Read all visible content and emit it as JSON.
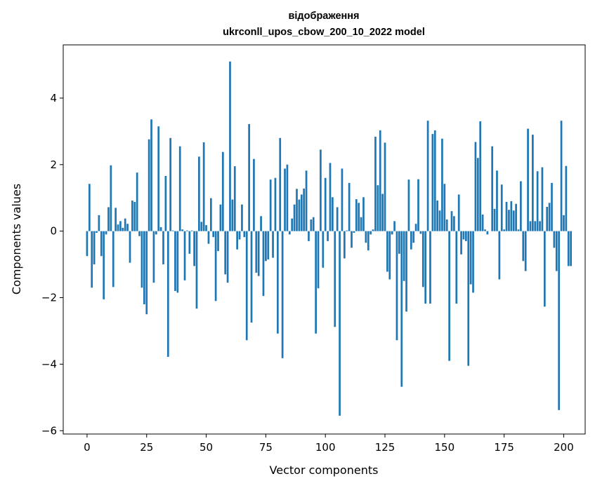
{
  "chart_data": {
    "type": "bar",
    "title_line1": "відображення",
    "title_line2": "ukrconll_upos_cbow_200_10_2022 model",
    "xlabel": "Vector components",
    "ylabel": "Components values",
    "xlim": [
      -10,
      209
    ],
    "ylim": [
      -6.1,
      5.6
    ],
    "xticks": [
      0,
      25,
      50,
      75,
      100,
      125,
      150,
      175,
      200
    ],
    "yticks": [
      -6,
      -4,
      -2,
      0,
      2,
      4
    ],
    "ytick_labels": [
      "−6",
      "−4",
      "−2",
      "0",
      "2",
      "4"
    ],
    "bar_color": "#1f77b4",
    "grid": false,
    "values": [
      -0.75,
      1.42,
      -1.7,
      -1.0,
      -0.05,
      0.48,
      -0.75,
      -2.05,
      -0.1,
      0.72,
      1.98,
      -1.68,
      0.7,
      0.2,
      0.3,
      0.1,
      0.38,
      0.22,
      -0.95,
      0.92,
      0.88,
      1.76,
      -0.15,
      -1.7,
      -2.2,
      -2.5,
      2.76,
      3.36,
      -1.55,
      -0.1,
      3.15,
      0.12,
      -1.0,
      1.66,
      -3.78,
      2.8,
      0.02,
      -1.8,
      -1.85,
      2.55,
      0.05,
      -1.48,
      0.02,
      -0.68,
      0.02,
      -1.05,
      -2.33,
      2.24,
      0.28,
      2.67,
      0.18,
      -0.38,
      0.99,
      -0.18,
      -2.1,
      -0.6,
      0.8,
      2.38,
      -1.3,
      -1.55,
      5.1,
      0.95,
      1.95,
      -0.55,
      -0.25,
      0.8,
      -0.18,
      -3.28,
      3.22,
      -2.75,
      2.17,
      -1.25,
      -1.35,
      0.45,
      -1.95,
      -0.9,
      -0.85,
      1.55,
      -0.8,
      1.6,
      -3.08,
      2.8,
      -3.82,
      1.88,
      2.0,
      -0.1,
      0.38,
      0.8,
      1.27,
      0.95,
      1.1,
      1.28,
      1.82,
      -0.3,
      0.35,
      0.42,
      -3.08,
      -1.72,
      2.45,
      -1.1,
      1.6,
      -0.3,
      2.05,
      1.02,
      -2.88,
      0.72,
      -5.55,
      1.88,
      -0.82,
      0.02,
      1.45,
      -0.5,
      -0.05,
      0.96,
      0.85,
      0.42,
      1.02,
      -0.35,
      -0.58,
      -0.1,
      0.05,
      2.84,
      1.38,
      3.03,
      1.12,
      2.66,
      -1.22,
      -1.45,
      -0.1,
      0.3,
      -3.28,
      -0.68,
      -4.68,
      -1.5,
      -2.42,
      1.55,
      -0.55,
      -0.35,
      0.22,
      1.56,
      -0.08,
      -1.68,
      -2.18,
      3.32,
      -2.18,
      2.92,
      3.03,
      0.92,
      0.62,
      2.78,
      1.42,
      0.35,
      -3.9,
      0.6,
      0.45,
      -2.18,
      1.1,
      -0.7,
      -0.25,
      -0.3,
      -4.05,
      -1.6,
      -1.85,
      2.68,
      2.2,
      3.3,
      0.5,
      0.05,
      -0.1,
      0.0,
      2.55,
      0.67,
      1.82,
      -1.45,
      1.4,
      0.05,
      0.88,
      0.64,
      0.9,
      0.62,
      0.82,
      0.05,
      1.5,
      -0.9,
      -1.2,
      3.08,
      0.3,
      2.9,
      0.3,
      1.8,
      0.3,
      1.92,
      -2.27,
      0.73,
      0.85,
      1.45,
      -0.5,
      -1.2,
      -5.38,
      3.32,
      0.48,
      1.96,
      -1.05,
      -1.05
    ]
  }
}
